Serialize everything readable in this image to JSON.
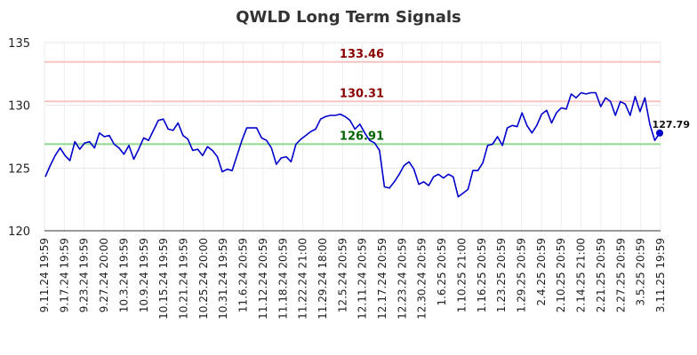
{
  "chart_data": {
    "type": "line",
    "title": "QWLD Long Term Signals",
    "ylim": [
      120,
      135
    ],
    "yticks": [
      "120",
      "125",
      "130",
      "135"
    ],
    "grid": true,
    "xtick_labels": [
      "9.11.24 19:59",
      "9.17.24 19:59",
      "9.23.24 19:59",
      "9.27.24 20:00",
      "10.3.24 19:59",
      "10.9.24 19:59",
      "10.15.24 19:59",
      "10.21.24 19:59",
      "10.25.24 20:00",
      "10.31.24 19:59",
      "11.6.24 20:59",
      "11.12.24 20:59",
      "11.18.24 20:59",
      "11.22.24 21:00",
      "11.29.24 18:00",
      "12.5.24 20:59",
      "12.11.24 20:59",
      "12.17.24 20:59",
      "12.23.24 20:59",
      "12.30.24 20:59",
      "1.6.25 20:59",
      "1.10.25 21:00",
      "1.16.25 20:59",
      "1.23.25 20:59",
      "1.29.25 20:59",
      "2.4.25 20:59",
      "2.10.25 20:59",
      "2.14.25 21:00",
      "2.21.25 20:59",
      "2.27.25 20:59",
      "3.5.25 20:59",
      "3.11.25 19:59"
    ],
    "levels": [
      {
        "value": 133.46,
        "label": "133.46",
        "line_color": "#f7c4c4",
        "text_color": "#8b0000"
      },
      {
        "value": 130.31,
        "label": "130.31",
        "line_color": "#f7c4c4",
        "text_color": "#8b0000"
      },
      {
        "value": 126.91,
        "label": "126.91",
        "line_color": "#90d890",
        "text_color": "#006400"
      }
    ],
    "series": [
      {
        "color": "#0000cc",
        "values": [
          124.3,
          125.2,
          126.0,
          126.6,
          126.0,
          125.6,
          127.1,
          126.5,
          127.0,
          127.1,
          126.6,
          127.8,
          127.5,
          127.6,
          126.9,
          126.6,
          126.1,
          126.8,
          125.7,
          126.5,
          127.4,
          127.2,
          128.0,
          128.8,
          128.9,
          128.1,
          128.0,
          128.6,
          127.6,
          127.3,
          126.4,
          126.5,
          126.0,
          126.7,
          126.4,
          125.9,
          124.7,
          124.9,
          124.8,
          126.0,
          127.2,
          128.2,
          128.2,
          128.2,
          127.4,
          127.2,
          126.6,
          125.3,
          125.8,
          125.9,
          125.5,
          126.9,
          127.3,
          127.6,
          127.9,
          128.1,
          128.9,
          129.1,
          129.2,
          129.2,
          129.3,
          129.1,
          128.8,
          128.1,
          128.5,
          127.8,
          127.2,
          127.0,
          126.4,
          123.5,
          123.4,
          123.9,
          124.5,
          125.2,
          125.5,
          124.9,
          123.7,
          123.9,
          123.6,
          124.3,
          124.5,
          124.2,
          124.5,
          124.3,
          122.7,
          123.0,
          123.3,
          124.8,
          124.8,
          125.4,
          126.8,
          126.9,
          127.5,
          126.8,
          128.2,
          128.4,
          128.3,
          129.4,
          128.4,
          127.8,
          128.4,
          129.3,
          129.6,
          128.6,
          129.4,
          129.8,
          129.7,
          130.9,
          130.6,
          131.0,
          130.9,
          131.0,
          131.0,
          129.9,
          130.6,
          130.3,
          129.2,
          130.3,
          130.1,
          129.2,
          130.7,
          129.5,
          130.6,
          128.5,
          127.2,
          127.79
        ]
      }
    ],
    "last_label": "127.79"
  }
}
